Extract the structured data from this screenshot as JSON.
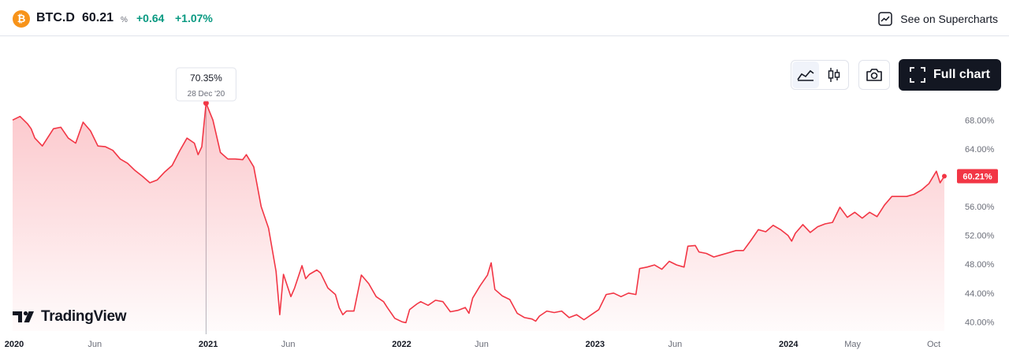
{
  "header": {
    "coin_icon": "bitcoin-icon",
    "coin_glyph": "₿",
    "symbol": "BTC.D",
    "last": "60.21",
    "unit": "%",
    "change": "+0.64",
    "change_pct": "+1.07%",
    "change_color": "#089981",
    "supercharts_label": "See on Supercharts"
  },
  "toolbar": {
    "area_icon": "area-chart-icon",
    "candles_icon": "candlestick-icon",
    "screenshot_icon": "camera-icon",
    "full_chart_label": "Full chart",
    "full_chart_icon": "expand-icon"
  },
  "branding": {
    "logo_text": "TradingView"
  },
  "tooltip": {
    "value": "70.35%",
    "date": "28 Dec '20"
  },
  "last_badge": "60.21%",
  "colors": {
    "line": "#f23645",
    "fill_top": "#f23645",
    "text_muted": "#6a6d78"
  },
  "chart_data": {
    "type": "area",
    "y_ticks": [
      {
        "value": 68,
        "label": "68.00%"
      },
      {
        "value": 64,
        "label": "64.00%"
      },
      {
        "value": 60,
        "label": "60.00%"
      },
      {
        "value": 56,
        "label": "56.00%"
      },
      {
        "value": 52,
        "label": "52.00%"
      },
      {
        "value": 48,
        "label": "48.00%"
      },
      {
        "value": 44,
        "label": "44.00%"
      },
      {
        "value": 40,
        "label": "40.00%"
      }
    ],
    "ylim": [
      39.6,
      73.5
    ],
    "xlim": [
      "2019-12-29",
      "2024-10-27"
    ],
    "x_ticks": [
      {
        "date": "2020-01-01",
        "label": "2020"
      },
      {
        "date": "2020-06-01",
        "label": "Jun"
      },
      {
        "date": "2021-01-01",
        "label": "2021"
      },
      {
        "date": "2021-06-01",
        "label": "Jun"
      },
      {
        "date": "2022-01-01",
        "label": "2022"
      },
      {
        "date": "2022-06-01",
        "label": "Jun"
      },
      {
        "date": "2023-01-01",
        "label": "2023"
      },
      {
        "date": "2023-06-01",
        "label": "Jun"
      },
      {
        "date": "2024-01-01",
        "label": "2024"
      },
      {
        "date": "2024-05-01",
        "label": "May"
      },
      {
        "date": "2024-10-01",
        "label": "Oct"
      }
    ],
    "highlight": {
      "date": "2020-12-28",
      "value": 70.35
    },
    "last": {
      "date": "2024-10-21",
      "value": 60.21
    },
    "series": [
      {
        "values": [
          [
            "2019-12-29",
            68.0
          ],
          [
            "2020-01-12",
            68.5
          ],
          [
            "2020-01-26",
            67.5
          ],
          [
            "2020-02-02",
            66.8
          ],
          [
            "2020-02-09",
            65.5
          ],
          [
            "2020-02-23",
            64.4
          ],
          [
            "2020-03-01",
            65.2
          ],
          [
            "2020-03-15",
            66.8
          ],
          [
            "2020-03-29",
            67.0
          ],
          [
            "2020-04-12",
            65.5
          ],
          [
            "2020-04-26",
            64.8
          ],
          [
            "2020-05-10",
            67.7
          ],
          [
            "2020-05-24",
            66.5
          ],
          [
            "2020-06-07",
            64.4
          ],
          [
            "2020-06-21",
            64.3
          ],
          [
            "2020-07-05",
            63.8
          ],
          [
            "2020-07-19",
            62.6
          ],
          [
            "2020-08-02",
            62.0
          ],
          [
            "2020-08-16",
            61.0
          ],
          [
            "2020-08-30",
            60.2
          ],
          [
            "2020-09-13",
            59.3
          ],
          [
            "2020-09-27",
            59.7
          ],
          [
            "2020-10-11",
            60.8
          ],
          [
            "2020-10-25",
            61.7
          ],
          [
            "2020-11-08",
            63.7
          ],
          [
            "2020-11-22",
            65.5
          ],
          [
            "2020-12-06",
            64.8
          ],
          [
            "2020-12-13",
            63.2
          ],
          [
            "2020-12-20",
            64.3
          ],
          [
            "2020-12-28",
            70.35
          ],
          [
            "2021-01-10",
            68.0
          ],
          [
            "2021-01-24",
            63.5
          ],
          [
            "2021-02-07",
            62.6
          ],
          [
            "2021-02-21",
            62.6
          ],
          [
            "2021-03-07",
            62.5
          ],
          [
            "2021-03-14",
            63.2
          ],
          [
            "2021-03-28",
            61.5
          ],
          [
            "2021-04-11",
            56.0
          ],
          [
            "2021-04-25",
            53.0
          ],
          [
            "2021-05-09",
            47.0
          ],
          [
            "2021-05-16",
            41.0
          ],
          [
            "2021-05-23",
            46.6
          ],
          [
            "2021-06-06",
            43.5
          ],
          [
            "2021-06-13",
            44.7
          ],
          [
            "2021-06-27",
            47.8
          ],
          [
            "2021-07-04",
            46.0
          ],
          [
            "2021-07-11",
            46.6
          ],
          [
            "2021-07-25",
            47.2
          ],
          [
            "2021-08-01",
            46.8
          ],
          [
            "2021-08-15",
            44.7
          ],
          [
            "2021-08-29",
            43.8
          ],
          [
            "2021-09-05",
            42.0
          ],
          [
            "2021-09-12",
            41.0
          ],
          [
            "2021-09-19",
            41.5
          ],
          [
            "2021-10-03",
            41.5
          ],
          [
            "2021-10-17",
            46.5
          ],
          [
            "2021-10-31",
            45.3
          ],
          [
            "2021-11-14",
            43.5
          ],
          [
            "2021-11-28",
            42.8
          ],
          [
            "2021-12-05",
            42.0
          ],
          [
            "2021-12-19",
            40.5
          ],
          [
            "2022-01-02",
            40.0
          ],
          [
            "2022-01-09",
            39.9
          ],
          [
            "2022-01-16",
            41.7
          ],
          [
            "2022-01-30",
            42.5
          ],
          [
            "2022-02-06",
            42.8
          ],
          [
            "2022-02-20",
            42.3
          ],
          [
            "2022-03-06",
            43.0
          ],
          [
            "2022-03-20",
            42.8
          ],
          [
            "2022-04-03",
            41.4
          ],
          [
            "2022-04-17",
            41.6
          ],
          [
            "2022-05-01",
            42.0
          ],
          [
            "2022-05-08",
            41.2
          ],
          [
            "2022-05-15",
            43.3
          ],
          [
            "2022-05-29",
            45.0
          ],
          [
            "2022-06-12",
            46.5
          ],
          [
            "2022-06-19",
            48.2
          ],
          [
            "2022-06-26",
            44.5
          ],
          [
            "2022-07-10",
            43.6
          ],
          [
            "2022-07-24",
            43.1
          ],
          [
            "2022-08-07",
            41.2
          ],
          [
            "2022-08-21",
            40.6
          ],
          [
            "2022-09-04",
            40.4
          ],
          [
            "2022-09-11",
            40.1
          ],
          [
            "2022-09-18",
            40.8
          ],
          [
            "2022-10-02",
            41.5
          ],
          [
            "2022-10-16",
            41.3
          ],
          [
            "2022-10-30",
            41.5
          ],
          [
            "2022-11-13",
            40.6
          ],
          [
            "2022-11-27",
            41.0
          ],
          [
            "2022-12-11",
            40.3
          ],
          [
            "2022-12-25",
            41.0
          ],
          [
            "2023-01-08",
            41.7
          ],
          [
            "2023-01-22",
            43.8
          ],
          [
            "2023-02-05",
            44.0
          ],
          [
            "2023-02-19",
            43.5
          ],
          [
            "2023-03-05",
            44.0
          ],
          [
            "2023-03-19",
            43.8
          ],
          [
            "2023-03-26",
            47.4
          ],
          [
            "2023-04-09",
            47.6
          ],
          [
            "2023-04-23",
            47.9
          ],
          [
            "2023-05-07",
            47.3
          ],
          [
            "2023-05-21",
            48.4
          ],
          [
            "2023-06-04",
            47.9
          ],
          [
            "2023-06-18",
            47.6
          ],
          [
            "2023-06-25",
            50.5
          ],
          [
            "2023-07-09",
            50.6
          ],
          [
            "2023-07-16",
            49.7
          ],
          [
            "2023-07-30",
            49.5
          ],
          [
            "2023-08-13",
            49.0
          ],
          [
            "2023-08-27",
            49.3
          ],
          [
            "2023-09-10",
            49.6
          ],
          [
            "2023-09-24",
            49.9
          ],
          [
            "2023-10-08",
            49.9
          ],
          [
            "2023-10-22",
            51.3
          ],
          [
            "2023-11-05",
            52.8
          ],
          [
            "2023-11-19",
            52.5
          ],
          [
            "2023-12-03",
            53.4
          ],
          [
            "2023-12-17",
            52.8
          ],
          [
            "2023-12-31",
            52.0
          ],
          [
            "2024-01-07",
            51.2
          ],
          [
            "2024-01-14",
            52.3
          ],
          [
            "2024-01-28",
            53.5
          ],
          [
            "2024-02-11",
            52.4
          ],
          [
            "2024-02-25",
            53.2
          ],
          [
            "2024-03-10",
            53.6
          ],
          [
            "2024-03-24",
            53.8
          ],
          [
            "2024-04-07",
            55.9
          ],
          [
            "2024-04-21",
            54.5
          ],
          [
            "2024-05-05",
            55.2
          ],
          [
            "2024-05-19",
            54.4
          ],
          [
            "2024-06-02",
            55.2
          ],
          [
            "2024-06-16",
            54.6
          ],
          [
            "2024-06-30",
            56.2
          ],
          [
            "2024-07-14",
            57.4
          ],
          [
            "2024-07-28",
            57.4
          ],
          [
            "2024-08-11",
            57.4
          ],
          [
            "2024-08-25",
            57.7
          ],
          [
            "2024-09-08",
            58.3
          ],
          [
            "2024-09-22",
            59.2
          ],
          [
            "2024-10-06",
            60.9
          ],
          [
            "2024-10-13",
            59.3
          ],
          [
            "2024-10-21",
            60.21
          ]
        ]
      }
    ]
  }
}
